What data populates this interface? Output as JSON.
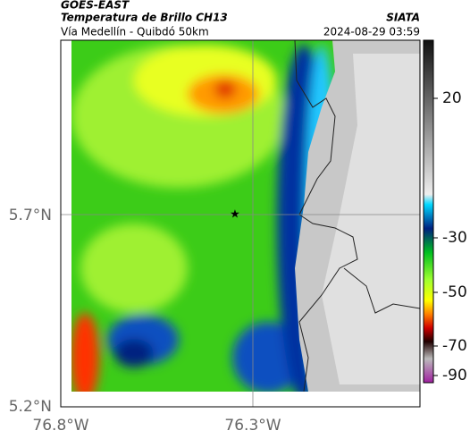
{
  "header": {
    "source": "GOES-EAST",
    "product": "Temperatura de Brillo CH13",
    "region": "Vía Medellín - Quibdó 50km",
    "agency": "SIATA",
    "datetime": "2024-08-29 03:59"
  },
  "map": {
    "lat_ticks": [
      "5.7°N",
      "5.2°N"
    ],
    "lon_ticks": [
      "76.8°W",
      "76.3°W"
    ]
  },
  "colorbar": {
    "ticks": [
      "20",
      "-30",
      "-50",
      "-70",
      "-90"
    ]
  }
}
